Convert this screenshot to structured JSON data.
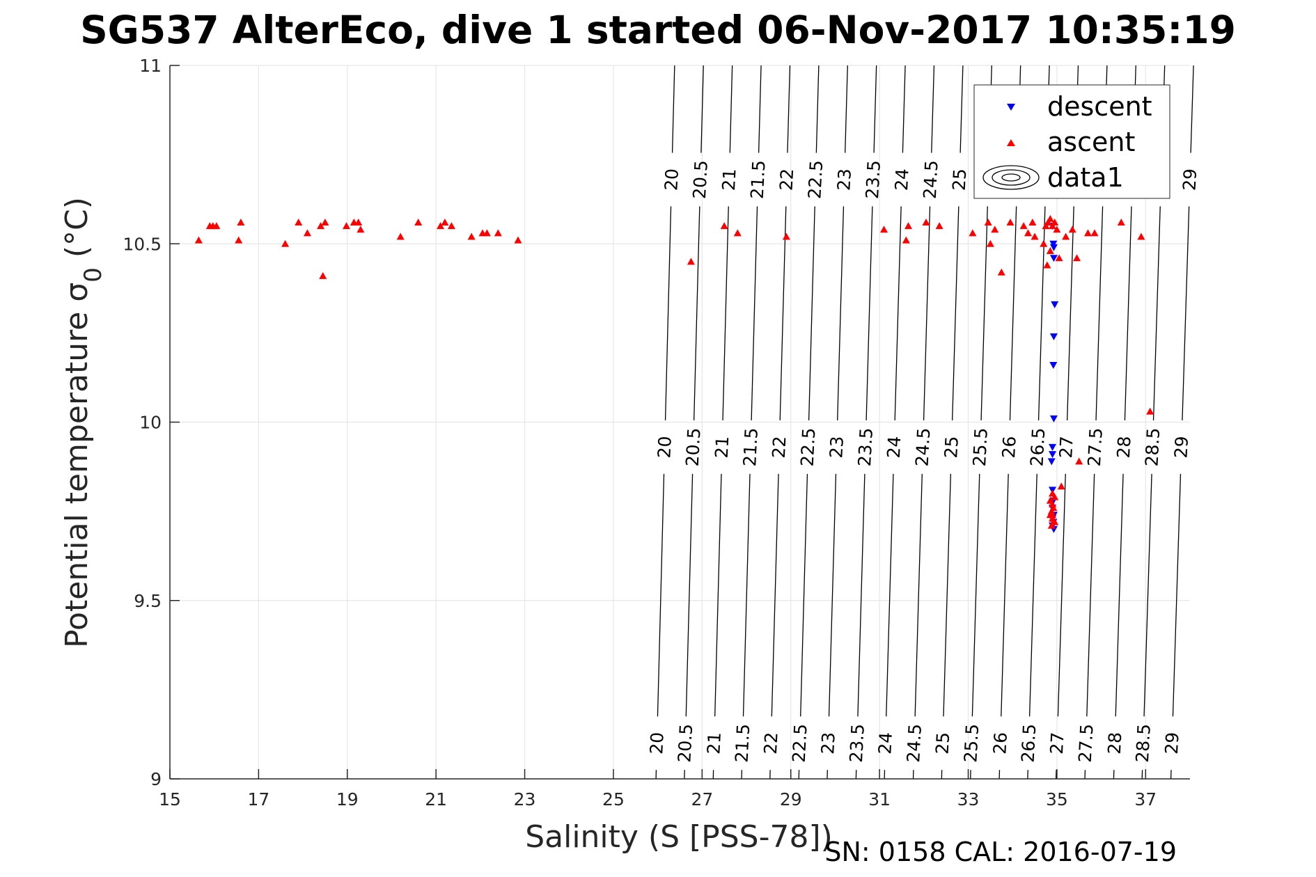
{
  "chart_data": {
    "type": "scatter",
    "title": "SG537 AlterEco, dive 1 started 06-Nov-2017 10:35:19",
    "xlabel": "Salinity (S [PSS-78])",
    "ylabel_main": "Potential temperature σ",
    "ylabel_sub": "0",
    "ylabel_unit": "(°C)",
    "xlim": [
      15,
      38
    ],
    "ylim": [
      9,
      11
    ],
    "xticks": [
      "15",
      "17",
      "19",
      "21",
      "23",
      "25",
      "27",
      "29",
      "31",
      "33",
      "35",
      "37"
    ],
    "yticks": [
      "9",
      "9.5",
      "10",
      "10.5",
      "11"
    ],
    "grid": true,
    "legend_position": "top-right",
    "legend": [
      "descent",
      "ascent",
      "data1"
    ],
    "colors": {
      "descent": "#0000ff",
      "ascent": "#ff0000",
      "contour": "#000000",
      "grid": "#e6e6e6"
    },
    "contours": {
      "name": "data1",
      "levels": [
        20,
        20.5,
        21,
        21.5,
        22,
        22.5,
        23,
        23.5,
        24,
        24.5,
        25,
        25.5,
        26,
        26.5,
        27,
        27.5,
        28,
        28.5,
        29
      ],
      "labels": [
        "20",
        "20.5",
        "21",
        "21.5",
        "22",
        "22.5",
        "23",
        "23.5",
        "24",
        "24.5",
        "25",
        "25.5",
        "26",
        "26.5",
        "27",
        "27.5",
        "28",
        "28.5",
        "29"
      ],
      "salinity_at_t9": [
        25.96,
        26.6,
        27.25,
        27.89,
        28.53,
        29.18,
        29.82,
        30.47,
        31.11,
        31.76,
        32.4,
        33.05,
        33.7,
        34.34,
        34.98,
        35.63,
        36.28,
        36.92,
        37.57
      ],
      "salinity_at_t11": [
        26.38,
        27.03,
        27.68,
        28.33,
        28.98,
        29.63,
        30.28,
        30.93,
        31.58,
        32.23,
        32.88,
        33.53,
        34.18,
        34.83,
        35.48,
        36.13,
        36.78,
        37.43,
        38.08
      ],
      "label_rows_temperature": [
        10.68,
        9.93,
        9.1
      ]
    },
    "series": [
      {
        "name": "descent",
        "marker": "triangle-down",
        "points": [
          [
            34.9,
            10.55
          ],
          [
            34.92,
            10.5
          ],
          [
            34.93,
            10.49
          ],
          [
            34.93,
            10.46
          ],
          [
            34.95,
            10.33
          ],
          [
            34.93,
            10.24
          ],
          [
            34.92,
            10.16
          ],
          [
            34.93,
            10.01
          ],
          [
            34.9,
            9.93
          ],
          [
            34.9,
            9.91
          ],
          [
            34.88,
            9.89
          ],
          [
            34.9,
            9.81
          ],
          [
            34.92,
            9.78
          ],
          [
            34.9,
            9.76
          ],
          [
            34.93,
            9.74
          ],
          [
            34.9,
            9.73
          ],
          [
            34.92,
            9.72
          ],
          [
            34.9,
            9.71
          ],
          [
            34.93,
            9.7
          ]
        ]
      },
      {
        "name": "ascent",
        "marker": "triangle-up",
        "points": [
          [
            15.65,
            10.51
          ],
          [
            15.9,
            10.55
          ],
          [
            15.97,
            10.55
          ],
          [
            16.05,
            10.55
          ],
          [
            16.55,
            10.51
          ],
          [
            16.6,
            10.56
          ],
          [
            17.6,
            10.5
          ],
          [
            17.9,
            10.56
          ],
          [
            18.1,
            10.53
          ],
          [
            18.4,
            10.55
          ],
          [
            18.5,
            10.56
          ],
          [
            18.45,
            10.41
          ],
          [
            18.98,
            10.55
          ],
          [
            19.15,
            10.56
          ],
          [
            19.25,
            10.56
          ],
          [
            19.3,
            10.54
          ],
          [
            20.2,
            10.52
          ],
          [
            20.6,
            10.56
          ],
          [
            21.1,
            10.55
          ],
          [
            21.2,
            10.56
          ],
          [
            21.35,
            10.55
          ],
          [
            21.8,
            10.52
          ],
          [
            22.05,
            10.53
          ],
          [
            22.15,
            10.53
          ],
          [
            22.4,
            10.53
          ],
          [
            22.85,
            10.51
          ],
          [
            26.75,
            10.45
          ],
          [
            27.5,
            10.55
          ],
          [
            27.8,
            10.53
          ],
          [
            28.9,
            10.52
          ],
          [
            31.1,
            10.54
          ],
          [
            31.6,
            10.51
          ],
          [
            31.65,
            10.55
          ],
          [
            32.05,
            10.56
          ],
          [
            32.35,
            10.55
          ],
          [
            33.1,
            10.53
          ],
          [
            33.45,
            10.56
          ],
          [
            33.5,
            10.5
          ],
          [
            33.6,
            10.54
          ],
          [
            33.75,
            10.42
          ],
          [
            33.95,
            10.56
          ],
          [
            34.25,
            10.55
          ],
          [
            34.35,
            10.53
          ],
          [
            34.45,
            10.56
          ],
          [
            34.5,
            10.52
          ],
          [
            34.7,
            10.5
          ],
          [
            34.75,
            10.55
          ],
          [
            34.8,
            10.56
          ],
          [
            34.85,
            10.57
          ],
          [
            34.9,
            10.55
          ],
          [
            34.95,
            10.56
          ],
          [
            35.0,
            10.54
          ],
          [
            34.78,
            10.44
          ],
          [
            34.85,
            10.48
          ],
          [
            35.05,
            10.46
          ],
          [
            35.2,
            10.52
          ],
          [
            35.35,
            10.54
          ],
          [
            35.45,
            10.46
          ],
          [
            35.7,
            10.53
          ],
          [
            35.85,
            10.53
          ],
          [
            36.45,
            10.56
          ],
          [
            36.9,
            10.52
          ],
          [
            37.1,
            10.03
          ],
          [
            35.5,
            9.89
          ],
          [
            35.1,
            9.82
          ],
          [
            34.9,
            9.8
          ],
          [
            34.95,
            9.79
          ],
          [
            34.85,
            9.78
          ],
          [
            34.9,
            9.77
          ],
          [
            34.92,
            9.76
          ],
          [
            34.88,
            9.75
          ],
          [
            34.85,
            9.74
          ],
          [
            34.9,
            9.73
          ],
          [
            34.92,
            9.72
          ],
          [
            34.88,
            9.71
          ],
          [
            34.95,
            9.72
          ],
          [
            34.9,
            9.74
          ]
        ]
      }
    ]
  },
  "footer": {
    "serial": "SN: 0158  CAL: 2016-07-19"
  }
}
